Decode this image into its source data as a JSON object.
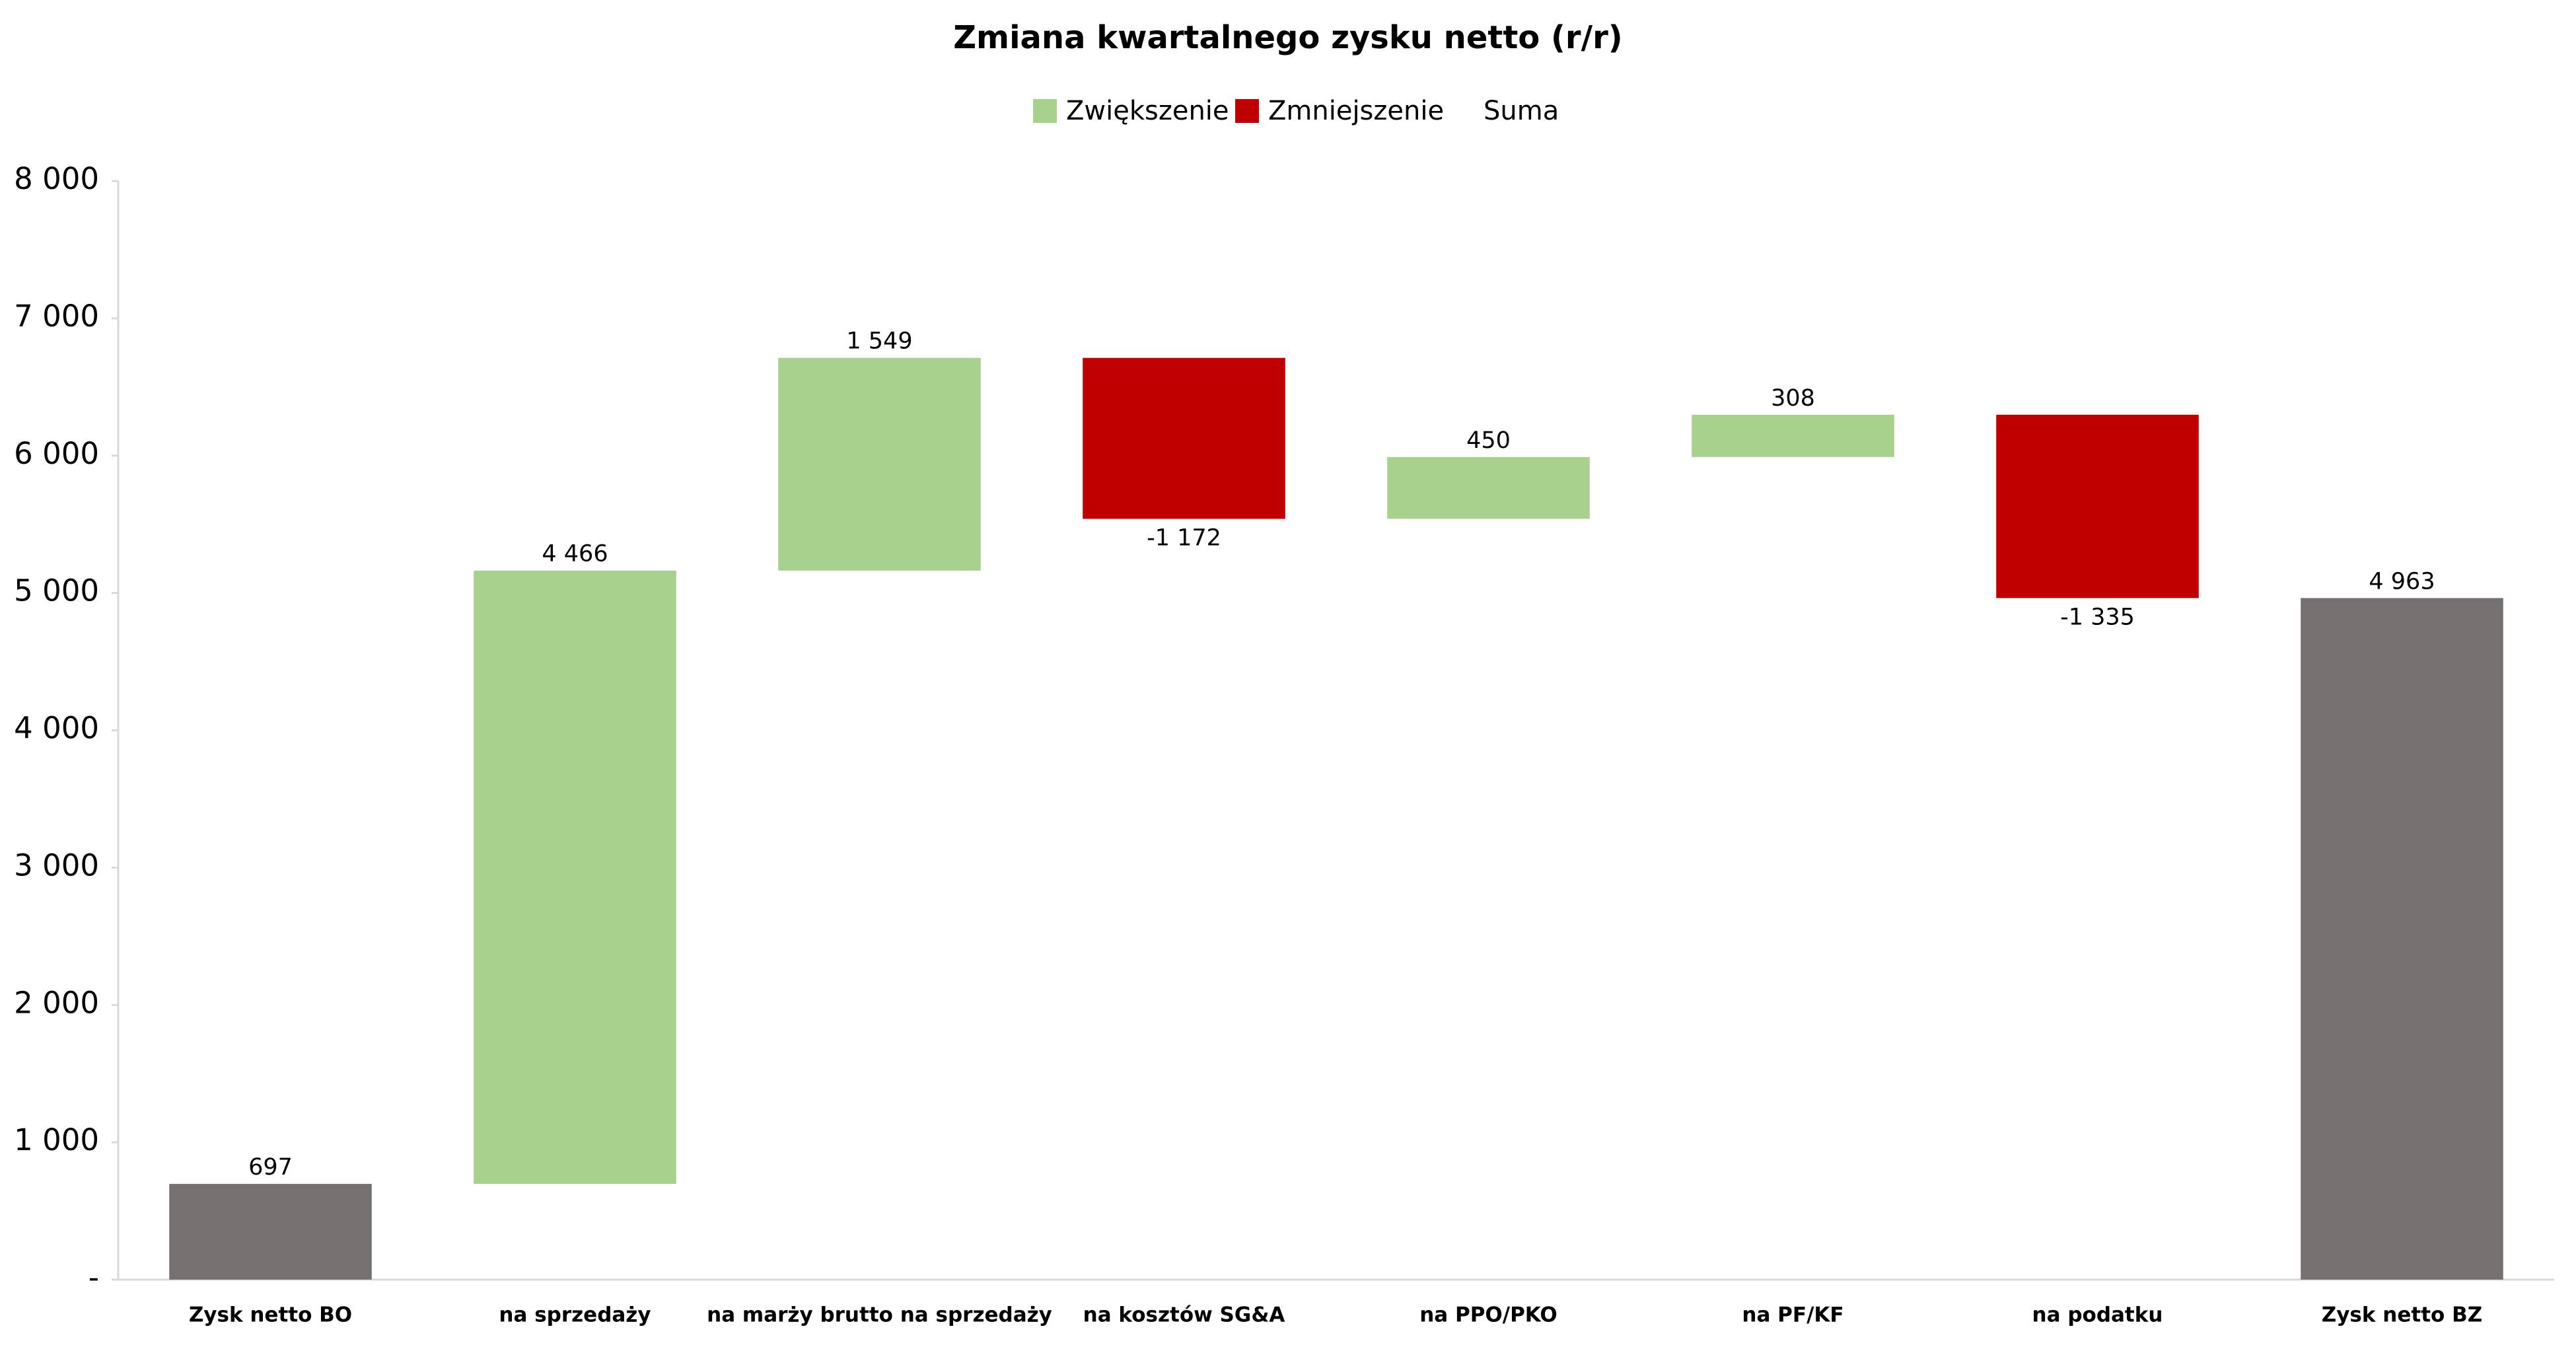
{
  "chart_data": {
    "type": "waterfall",
    "title": "Zmiana kwartalnego zysku netto (r/r)",
    "legend": [
      {
        "name": "Zwiększenie",
        "color": "#a9d18e"
      },
      {
        "name": "Zmniejszenie",
        "color": "#c00000"
      },
      {
        "name": "Suma"
      }
    ],
    "total_color": "#767171",
    "categories": [
      "Zysk netto BO",
      "na sprzedaży",
      "na marży brutto na sprzedaży",
      "na kosztów SG&A",
      "na PPO/PKO",
      "na PF/KF",
      "na podatku",
      "Zysk netto BZ"
    ],
    "measure": [
      "total",
      "relative",
      "relative",
      "relative",
      "relative",
      "relative",
      "relative",
      "total"
    ],
    "values": [
      697,
      4466,
      1549,
      -1172,
      450,
      308,
      -1335,
      4963
    ],
    "value_labels": [
      "697",
      "4 466",
      "1 549",
      "-1 172",
      "450",
      "308",
      "-1 335",
      "4 963"
    ],
    "ylim": [
      0,
      8000
    ],
    "yticks": [
      {
        "value": 0,
        "label": "-"
      },
      {
        "value": 1000,
        "label": "1 000"
      },
      {
        "value": 2000,
        "label": "2 000"
      },
      {
        "value": 3000,
        "label": "3 000"
      },
      {
        "value": 4000,
        "label": "4 000"
      },
      {
        "value": 5000,
        "label": "5 000"
      },
      {
        "value": 6000,
        "label": "6 000"
      },
      {
        "value": 7000,
        "label": "7 000"
      },
      {
        "value": 8000,
        "label": "8 000"
      }
    ]
  }
}
